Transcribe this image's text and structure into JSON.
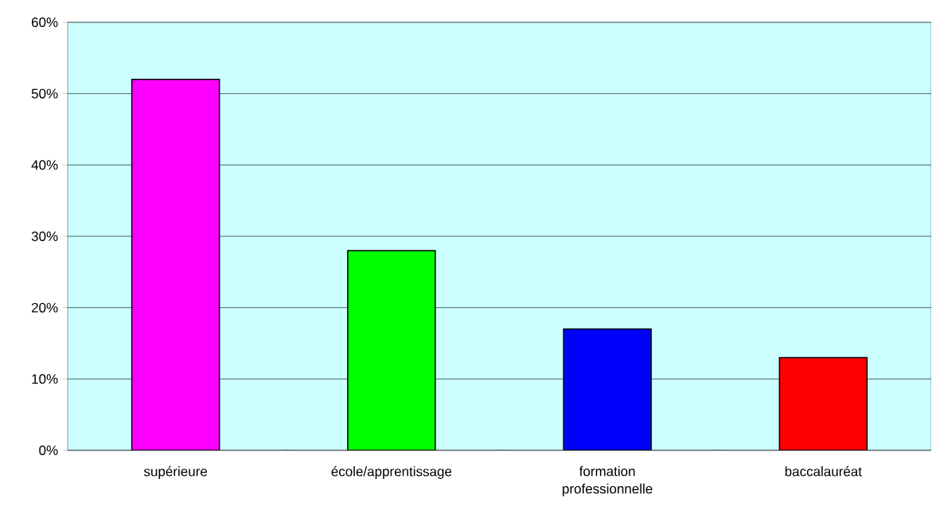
{
  "chart_data": {
    "type": "bar",
    "categories": [
      "supérieure",
      "école/apprentissage",
      "formation professionnelle",
      "baccalauréat"
    ],
    "values": [
      52,
      28,
      17,
      13
    ],
    "colors": [
      "#ff00ff",
      "#00ff00",
      "#0000ff",
      "#ff0000"
    ],
    "ylim": [
      0,
      60
    ],
    "yticks": [
      {
        "value": 0,
        "label": "0%"
      },
      {
        "value": 10,
        "label": "10%"
      },
      {
        "value": 20,
        "label": "20%"
      },
      {
        "value": 30,
        "label": "30%"
      },
      {
        "value": 40,
        "label": "40%"
      },
      {
        "value": 50,
        "label": "50%"
      },
      {
        "value": 60,
        "label": "60%"
      }
    ],
    "grid": "y"
  }
}
